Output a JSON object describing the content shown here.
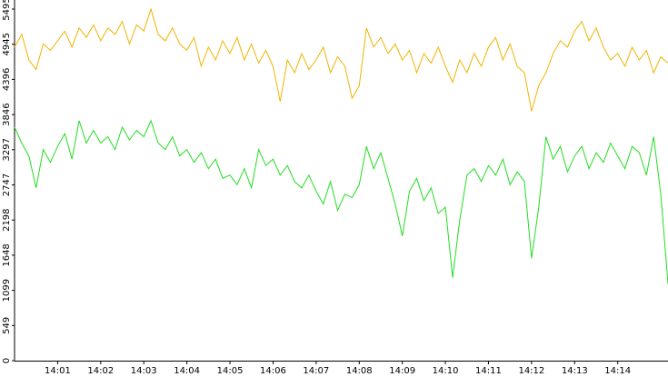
{
  "chart_data": {
    "type": "line",
    "x": [
      "14:00:00",
      "14:00:10",
      "14:00:20",
      "14:00:30",
      "14:00:40",
      "14:00:50",
      "14:01:00",
      "14:01:10",
      "14:01:20",
      "14:01:30",
      "14:01:40",
      "14:01:50",
      "14:02:00",
      "14:02:10",
      "14:02:20",
      "14:02:30",
      "14:02:40",
      "14:02:50",
      "14:03:00",
      "14:03:10",
      "14:03:20",
      "14:03:30",
      "14:03:40",
      "14:03:50",
      "14:04:00",
      "14:04:10",
      "14:04:20",
      "14:04:30",
      "14:04:40",
      "14:04:50",
      "14:05:00",
      "14:05:10",
      "14:05:20",
      "14:05:30",
      "14:05:40",
      "14:05:50",
      "14:06:00",
      "14:06:10",
      "14:06:20",
      "14:06:30",
      "14:06:40",
      "14:06:50",
      "14:07:00",
      "14:07:10",
      "14:07:20",
      "14:07:30",
      "14:07:40",
      "14:07:50",
      "14:08:00",
      "14:08:10",
      "14:08:20",
      "14:08:30",
      "14:08:40",
      "14:08:50",
      "14:09:00",
      "14:09:10",
      "14:09:20",
      "14:09:30",
      "14:09:40",
      "14:09:50",
      "14:10:00",
      "14:10:10",
      "14:10:20",
      "14:10:30",
      "14:10:40",
      "14:10:50",
      "14:11:00",
      "14:11:10",
      "14:11:20",
      "14:11:30",
      "14:11:40",
      "14:11:50",
      "14:12:00",
      "14:12:10",
      "14:12:20",
      "14:12:30",
      "14:12:40",
      "14:12:50",
      "14:13:00",
      "14:13:10",
      "14:13:20",
      "14:13:30",
      "14:13:40",
      "14:13:50",
      "14:14:00",
      "14:14:10",
      "14:14:20",
      "14:14:30",
      "14:14:40",
      "14:14:50",
      "14:15:00",
      "14:15:10"
    ],
    "series": [
      {
        "color": "#f0b400",
        "values": [
          4900,
          5100,
          4700,
          4550,
          4950,
          4850,
          5000,
          5150,
          4900,
          5200,
          5050,
          5250,
          5000,
          5200,
          5100,
          5300,
          4950,
          5250,
          5150,
          5495,
          5100,
          5000,
          5200,
          4950,
          4850,
          5050,
          4600,
          4900,
          4700,
          5000,
          4800,
          5050,
          4700,
          4950,
          4650,
          4850,
          4600,
          4050,
          4700,
          4500,
          4800,
          4550,
          4700,
          4900,
          4500,
          4750,
          4600,
          4100,
          4300,
          5200,
          4900,
          5050,
          4800,
          4950,
          4700,
          4850,
          4500,
          4800,
          4650,
          4900,
          4600,
          4350,
          4700,
          4500,
          4800,
          4600,
          4900,
          5050,
          4700,
          4950,
          4600,
          4500,
          3900,
          4300,
          4500,
          4800,
          5000,
          4900,
          5150,
          5300,
          5000,
          5200,
          4900,
          4700,
          4800,
          4600,
          4900,
          4700,
          4850,
          4500,
          4750,
          4650
        ]
      },
      {
        "color": "#22dd22",
        "values": [
          3650,
          3400,
          3200,
          2700,
          3300,
          3100,
          3350,
          3550,
          3150,
          3750,
          3400,
          3600,
          3400,
          3500,
          3300,
          3650,
          3450,
          3600,
          3500,
          3750,
          3400,
          3300,
          3500,
          3200,
          3300,
          3100,
          3250,
          3000,
          3150,
          2850,
          2900,
          2750,
          3000,
          2700,
          3300,
          3050,
          3150,
          2900,
          3050,
          2800,
          2700,
          2900,
          2650,
          2450,
          2800,
          2350,
          2600,
          2550,
          2750,
          3350,
          3000,
          3250,
          2850,
          2450,
          1950,
          2650,
          2850,
          2500,
          2700,
          2300,
          2400,
          1300,
          2200,
          2900,
          3000,
          2800,
          3050,
          2900,
          3150,
          2750,
          2950,
          2800,
          1600,
          2400,
          3500,
          3150,
          3350,
          2950,
          3200,
          3350,
          3000,
          3250,
          3100,
          3400,
          3200,
          3000,
          3350,
          3250,
          2900,
          3500,
          2600,
          1200
        ]
      }
    ],
    "xlim": [
      "14:00:00",
      "14:15:10"
    ],
    "xticks": [
      "14:01",
      "14:02",
      "14:03",
      "14:04",
      "14:05",
      "14:06",
      "14:07",
      "14:08",
      "14:09",
      "14:10",
      "14:11",
      "14:12",
      "14:13",
      "14:14"
    ],
    "ylim": [
      0,
      5637
    ],
    "yticks": [
      0,
      549,
      1099,
      1648,
      2198,
      2747,
      3297,
      3846,
      4396,
      4945,
      5495
    ]
  }
}
